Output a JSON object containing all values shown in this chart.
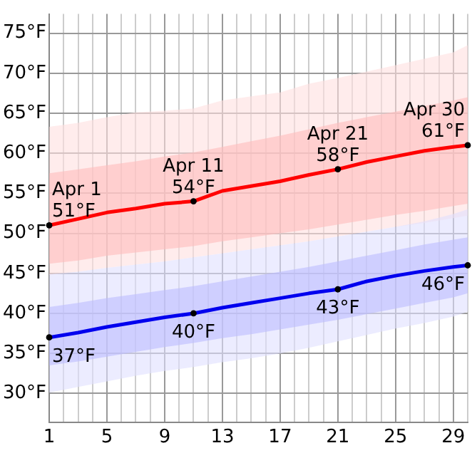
{
  "chart_data": {
    "type": "line",
    "x": [
      1,
      3,
      5,
      7,
      9,
      11,
      13,
      15,
      17,
      19,
      21,
      23,
      25,
      27,
      29,
      30
    ],
    "xlim": [
      1,
      30
    ],
    "xticks": [
      1,
      {
        "value": 2,
        "label": null
      },
      {
        "value": 3,
        "label": null
      },
      {
        "value": 4,
        "label": null
      },
      5,
      {
        "value": 6,
        "label": null
      },
      {
        "value": 7,
        "label": null
      },
      {
        "value": 8,
        "label": null
      },
      9,
      {
        "value": 10,
        "label": null
      },
      {
        "value": 11,
        "label": null
      },
      {
        "value": 12,
        "label": null
      },
      13,
      {
        "value": 14,
        "label": null
      },
      {
        "value": 15,
        "label": null
      },
      {
        "value": 16,
        "label": null
      },
      17,
      {
        "value": 18,
        "label": null
      },
      {
        "value": 19,
        "label": null
      },
      {
        "value": 20,
        "label": null
      },
      21,
      {
        "value": 22,
        "label": null
      },
      {
        "value": 23,
        "label": null
      },
      {
        "value": 24,
        "label": null
      },
      25,
      {
        "value": 26,
        "label": null
      },
      {
        "value": 27,
        "label": null
      },
      {
        "value": 28,
        "label": null
      },
      29,
      {
        "value": 30,
        "label": null
      }
    ],
    "ylim": [
      26.4,
      77.4
    ],
    "yticks": [
      {
        "value": 30,
        "label": "30°F"
      },
      {
        "value": 35,
        "label": "35°F"
      },
      {
        "value": 40,
        "label": "40°F"
      },
      {
        "value": 45,
        "label": "45°F"
      },
      {
        "value": 50,
        "label": "50°F"
      },
      {
        "value": 55,
        "label": "55°F"
      },
      {
        "value": 60,
        "label": "60°F"
      },
      {
        "value": 65,
        "label": "65°F"
      },
      {
        "value": 70,
        "label": "70°F"
      },
      {
        "value": 75,
        "label": "75°F"
      }
    ],
    "grid": true,
    "legend": false,
    "marker": "none",
    "line_style": "solid",
    "series": [
      {
        "color": "#ffe0e0",
        "values": [
          null,
          null,
          null,
          null,
          null,
          null,
          null,
          null,
          null,
          null,
          null,
          null,
          null,
          null,
          null,
          null
        ],
        "lower": [
          44.8,
          45.2,
          45.7,
          46.1,
          46.5,
          47,
          47.5,
          48,
          48.5,
          49,
          49.6,
          50.2,
          50.8,
          51.3,
          51.9,
          52.2
        ],
        "upper": [
          63.3,
          63.8,
          64.5,
          65.1,
          65.3,
          65.6,
          66.6,
          67.1,
          67.6,
          68.7,
          69.4,
          70.2,
          71,
          71.8,
          72.6,
          73.5
        ]
      },
      {
        "color": "#ffbcbc",
        "values": [
          null,
          null,
          null,
          null,
          null,
          null,
          null,
          null,
          null,
          null,
          null,
          null,
          null,
          null,
          null,
          null
        ],
        "lower": [
          46.2,
          46.6,
          47.2,
          47.6,
          48,
          48.4,
          49,
          49.5,
          50,
          50.5,
          51.1,
          51.7,
          52.3,
          52.8,
          53.4,
          53.7
        ],
        "upper": [
          57.5,
          58,
          58.5,
          59,
          59.6,
          60.1,
          60.8,
          61.5,
          62.2,
          63,
          63.8,
          64.5,
          65.2,
          65.9,
          66.6,
          67
        ]
      },
      {
        "color": "#e0e0ff",
        "values": [
          null,
          null,
          null,
          null,
          null,
          null,
          null,
          null,
          null,
          null,
          null,
          null,
          null,
          null,
          null,
          null
        ],
        "lower": [
          30.1,
          30.8,
          31.5,
          32.2,
          32.8,
          33.3,
          33.9,
          34.4,
          35,
          35.7,
          36.5,
          37.3,
          38.1,
          38.8,
          39.6,
          40.2
        ],
        "upper": [
          44.9,
          45.2,
          45.7,
          46.1,
          46.5,
          47,
          47.5,
          48,
          48.5,
          49,
          49.6,
          50.2,
          50.8,
          51.5,
          52.4,
          53
        ]
      },
      {
        "color": "#bcbcff",
        "values": [
          null,
          null,
          null,
          null,
          null,
          null,
          null,
          null,
          null,
          null,
          null,
          null,
          null,
          null,
          null,
          null
        ],
        "lower": [
          33.5,
          34,
          34.6,
          35.2,
          35.8,
          36.3,
          36.9,
          37.4,
          38,
          38.6,
          39.2,
          39.9,
          40.6,
          41.3,
          42,
          42.5
        ],
        "upper": [
          40.8,
          41.3,
          41.9,
          42.4,
          42.9,
          43.4,
          44,
          44.6,
          45.2,
          45.8,
          46.5,
          47.2,
          47.9,
          48.6,
          49.2,
          49.5
        ]
      },
      {
        "color": "#ff0000",
        "values": [
          51,
          51.8,
          52.6,
          53.1,
          53.7,
          54,
          55.3,
          55.9,
          56.5,
          57.3,
          58,
          58.9,
          59.6,
          60.3,
          60.8,
          61
        ]
      },
      {
        "color": "#0000ee",
        "values": [
          37,
          37.6,
          38.3,
          38.9,
          39.5,
          40,
          40.7,
          41.3,
          41.9,
          42.5,
          43,
          44,
          44.7,
          45.3,
          45.8,
          46
        ]
      }
    ],
    "annotations": [
      {
        "text": "Apr 1\n51°F",
        "x": 1,
        "y": 51
      },
      {
        "text": "Apr 11\n54°F",
        "x": 11,
        "y": 54
      },
      {
        "text": "Apr 21\n58°F",
        "x": 21,
        "y": 58
      },
      {
        "text": "Apr 30\n61°F",
        "x": 30,
        "y": 61
      },
      {
        "text": "37°F",
        "x": 1,
        "y": 37
      },
      {
        "text": "40°F",
        "x": 11,
        "y": 40
      },
      {
        "text": "43°F",
        "x": 21,
        "y": 43
      },
      {
        "text": "46°F",
        "x": 30,
        "y": 46
      }
    ]
  }
}
